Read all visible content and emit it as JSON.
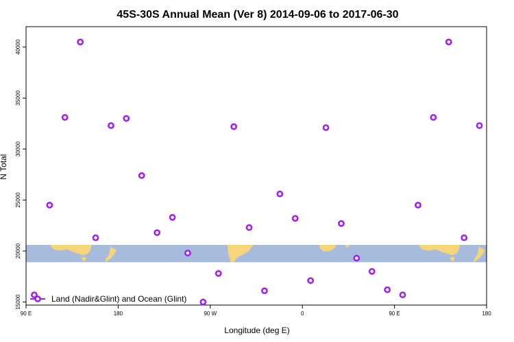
{
  "chart_data": {
    "type": "scatter",
    "title": "45S-30S Annual Mean (Ver 8)   2014-09-06 to 2017-06-30",
    "xlabel": "Longitude (deg E)",
    "ylabel": "N Total",
    "x_ticks": [
      {
        "value": 90,
        "label": "90 E"
      },
      {
        "value": 180,
        "label": "180"
      },
      {
        "value": 270,
        "label": "90 W"
      },
      {
        "value": 360,
        "label": "0"
      },
      {
        "value": 450,
        "label": "90 E"
      },
      {
        "value": 540,
        "label": "180"
      }
    ],
    "y_ticks": [
      {
        "value": 15000,
        "label": "15000"
      },
      {
        "value": 20000,
        "label": "20000"
      },
      {
        "value": 25000,
        "label": "25000"
      },
      {
        "value": 30000,
        "label": "30000"
      },
      {
        "value": 35000,
        "label": "35000"
      },
      {
        "value": 40000,
        "label": "40000"
      }
    ],
    "xlim": [
      90,
      540
    ],
    "ylim": [
      14700,
      42000
    ],
    "legend": {
      "position": "bottom-left",
      "entries": [
        "Land (Nadir&Glint) and Ocean (Glint)"
      ]
    },
    "grid": false,
    "marker_color": "#a020f0",
    "map_band": {
      "y_range": [
        18900,
        20600
      ],
      "ocean_color": "#a7bcdc",
      "land_color": "#f7d57a"
    },
    "series": [
      {
        "name": "Land (Nadir&Glint) and Ocean (Glint)",
        "points": [
          {
            "x": 98,
            "y": 15700
          },
          {
            "x": 113,
            "y": 24500
          },
          {
            "x": 128,
            "y": 33100
          },
          {
            "x": 143,
            "y": 40500
          },
          {
            "x": 158,
            "y": 21300
          },
          {
            "x": 173,
            "y": 32300
          },
          {
            "x": 188,
            "y": 33000
          },
          {
            "x": 203,
            "y": 27400
          },
          {
            "x": 218,
            "y": 21800
          },
          {
            "x": 233,
            "y": 23300
          },
          {
            "x": 248,
            "y": 19800
          },
          {
            "x": 263,
            "y": 15000
          },
          {
            "x": 278,
            "y": 17800
          },
          {
            "x": 293,
            "y": 32200
          },
          {
            "x": 308,
            "y": 22300
          },
          {
            "x": 323,
            "y": 16100
          },
          {
            "x": 338,
            "y": 25600
          },
          {
            "x": 353,
            "y": 23200
          },
          {
            "x": 368,
            "y": 17100
          },
          {
            "x": 383,
            "y": 32100
          },
          {
            "x": 398,
            "y": 22700
          },
          {
            "x": 413,
            "y": 19300
          },
          {
            "x": 428,
            "y": 18000
          },
          {
            "x": 443,
            "y": 16200
          },
          {
            "x": 458,
            "y": 15700
          },
          {
            "x": 473,
            "y": 24500
          },
          {
            "x": 488,
            "y": 33100
          },
          {
            "x": 503,
            "y": 40500
          },
          {
            "x": 518,
            "y": 21300
          },
          {
            "x": 533,
            "y": 32300
          }
        ]
      }
    ]
  }
}
